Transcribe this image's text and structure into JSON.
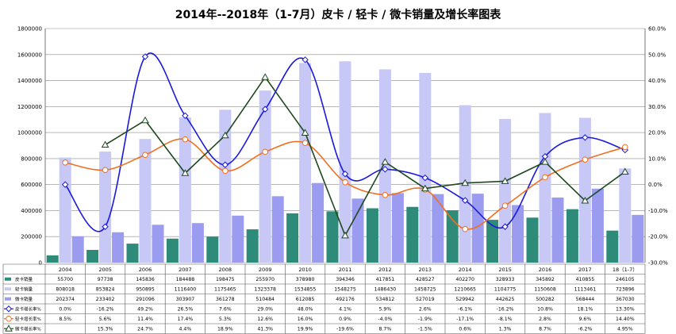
{
  "chart_data": {
    "type": "bar",
    "title": "2014年--2018年（1-7月）皮卡 / 轻卡 / 微卡销量及增长率图表",
    "categories": [
      "2004",
      "2005",
      "2006",
      "2007",
      "2008",
      "2009",
      "2010",
      "2011",
      "2012",
      "2013",
      "2014",
      "2015",
      "2016",
      "2017",
      "18（1-7）"
    ],
    "y_left": {
      "min": 0,
      "max": 1800000,
      "ticks": [
        "0",
        "200000",
        "400000",
        "600000",
        "800000",
        "1000000",
        "1200000",
        "1400000",
        "1600000",
        "1800000"
      ]
    },
    "y_right": {
      "min": -30,
      "max": 60,
      "ticks": [
        "-30.0%",
        "-20.0%",
        "-10.0%",
        "0.0%",
        "10.0%",
        "20.0%",
        "30.0%",
        "40.0%",
        "50.0%",
        "60.0%"
      ]
    },
    "grid": "horizontal",
    "legend": "data-table-bottom",
    "series": [
      {
        "name": "皮卡销量",
        "kind": "bar",
        "axis": "left",
        "color": "#2e8b79",
        "values": [
          55700,
          97738,
          145836,
          184488,
          198475,
          255970,
          378980,
          394346,
          417851,
          428527,
          402270,
          328933,
          345892,
          410855,
          246105
        ],
        "labels": [
          "55700",
          "97738",
          "145836",
          "184488",
          "198475",
          "255970",
          "378980",
          "394346",
          "417851",
          "428527",
          "402270",
          "328933",
          "345892",
          "410855",
          "246105"
        ]
      },
      {
        "name": "轻卡销量",
        "kind": "bar",
        "axis": "left",
        "color": "#c8c8f7",
        "values": [
          808018,
          853824,
          950895,
          1116400,
          1175465,
          1323378,
          1534855,
          1548275,
          1486430,
          1458725,
          1210665,
          1104775,
          1150608,
          1113461,
          723896
        ],
        "labels": [
          "808018",
          "853824",
          "950895",
          "1116400",
          "1175465",
          "1323378",
          "1534855",
          "1548275",
          "1486430",
          "1458725",
          "1210665",
          "1104775",
          "1150608",
          "1113461",
          "723896"
        ]
      },
      {
        "name": "微卡销量",
        "kind": "bar",
        "axis": "left",
        "color": "#9b9bf0",
        "values": [
          202374,
          233402,
          291096,
          303907,
          361278,
          510484,
          612085,
          492176,
          534812,
          527019,
          529942,
          442625,
          500282,
          568444,
          367030
        ],
        "labels": [
          "202374",
          "233402",
          "291096",
          "303907",
          "361278",
          "510484",
          "612085",
          "492176",
          "534812",
          "527019",
          "529942",
          "442625",
          "500282",
          "568444",
          "367030"
        ]
      },
      {
        "name": "皮卡增长率%",
        "kind": "line",
        "axis": "right",
        "color": "#1a1adc",
        "marker": "diamond",
        "values": [
          0.0,
          -16.2,
          49.2,
          26.5,
          7.6,
          29.0,
          48.0,
          4.1,
          5.9,
          2.6,
          -6.1,
          -16.2,
          10.8,
          18.1,
          13.3
        ],
        "labels": [
          "0.0%",
          "-16.2%",
          "49.2%",
          "26.5%",
          "7.6%",
          "29.0%",
          "48.0%",
          "4.1%",
          "5.9%",
          "2.6%",
          "-6.1%",
          "-16.2%",
          "10.8%",
          "18.1%",
          "13.30%"
        ]
      },
      {
        "name": "轻卡增长率%",
        "kind": "line",
        "axis": "right",
        "color": "#f07020",
        "marker": "circle",
        "values": [
          8.5,
          5.6,
          11.4,
          17.4,
          5.3,
          12.6,
          16.0,
          0.9,
          -4.0,
          -1.9,
          -17.1,
          -8.1,
          2.8,
          9.6,
          14.4
        ],
        "labels": [
          "8.5%",
          "5.6%",
          "11.4%",
          "17.4%",
          "5.3%",
          "12.6%",
          "16.0%",
          "0.9%",
          "-4.0%",
          "-1.9%",
          "-17.1%",
          "-8.1%",
          "2.8%",
          "9.6%",
          "14.40%"
        ]
      },
      {
        "name": "微卡增长率%",
        "kind": "line",
        "axis": "right",
        "color": "#1f4a1f",
        "marker": "triangle",
        "values": [
          null,
          15.3,
          24.7,
          4.4,
          18.9,
          41.3,
          19.9,
          -19.6,
          8.7,
          -1.5,
          0.6,
          1.3,
          8.7,
          -6.2,
          4.95
        ],
        "labels": [
          "",
          "15.3%",
          "24.7%",
          "4.4%",
          "18.9%",
          "41.3%",
          "19.9%",
          "-19.6%",
          "8.7%",
          "-1.5%",
          "0.6%",
          "1.3%",
          "8.7%",
          "-6.2%",
          "4.95%"
        ]
      }
    ]
  }
}
